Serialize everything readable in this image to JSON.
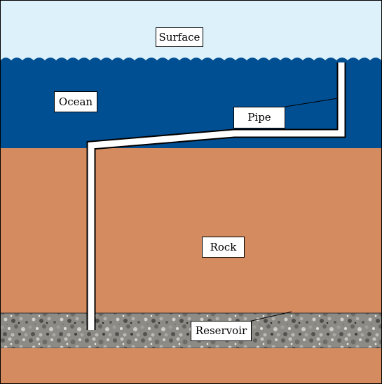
{
  "labels": {
    "surface": "Surface",
    "ocean": "Ocean",
    "pipe": "Pipe",
    "rock": "Rock",
    "reservoir": "Reservoir"
  },
  "colors": {
    "sky": "#dcf1fa",
    "ocean": "#004f93",
    "rock": "#d48b60",
    "reservoir_base": "#8a8a86",
    "pipe_fill": "#ffffff",
    "pipe_outline": "#000000"
  }
}
